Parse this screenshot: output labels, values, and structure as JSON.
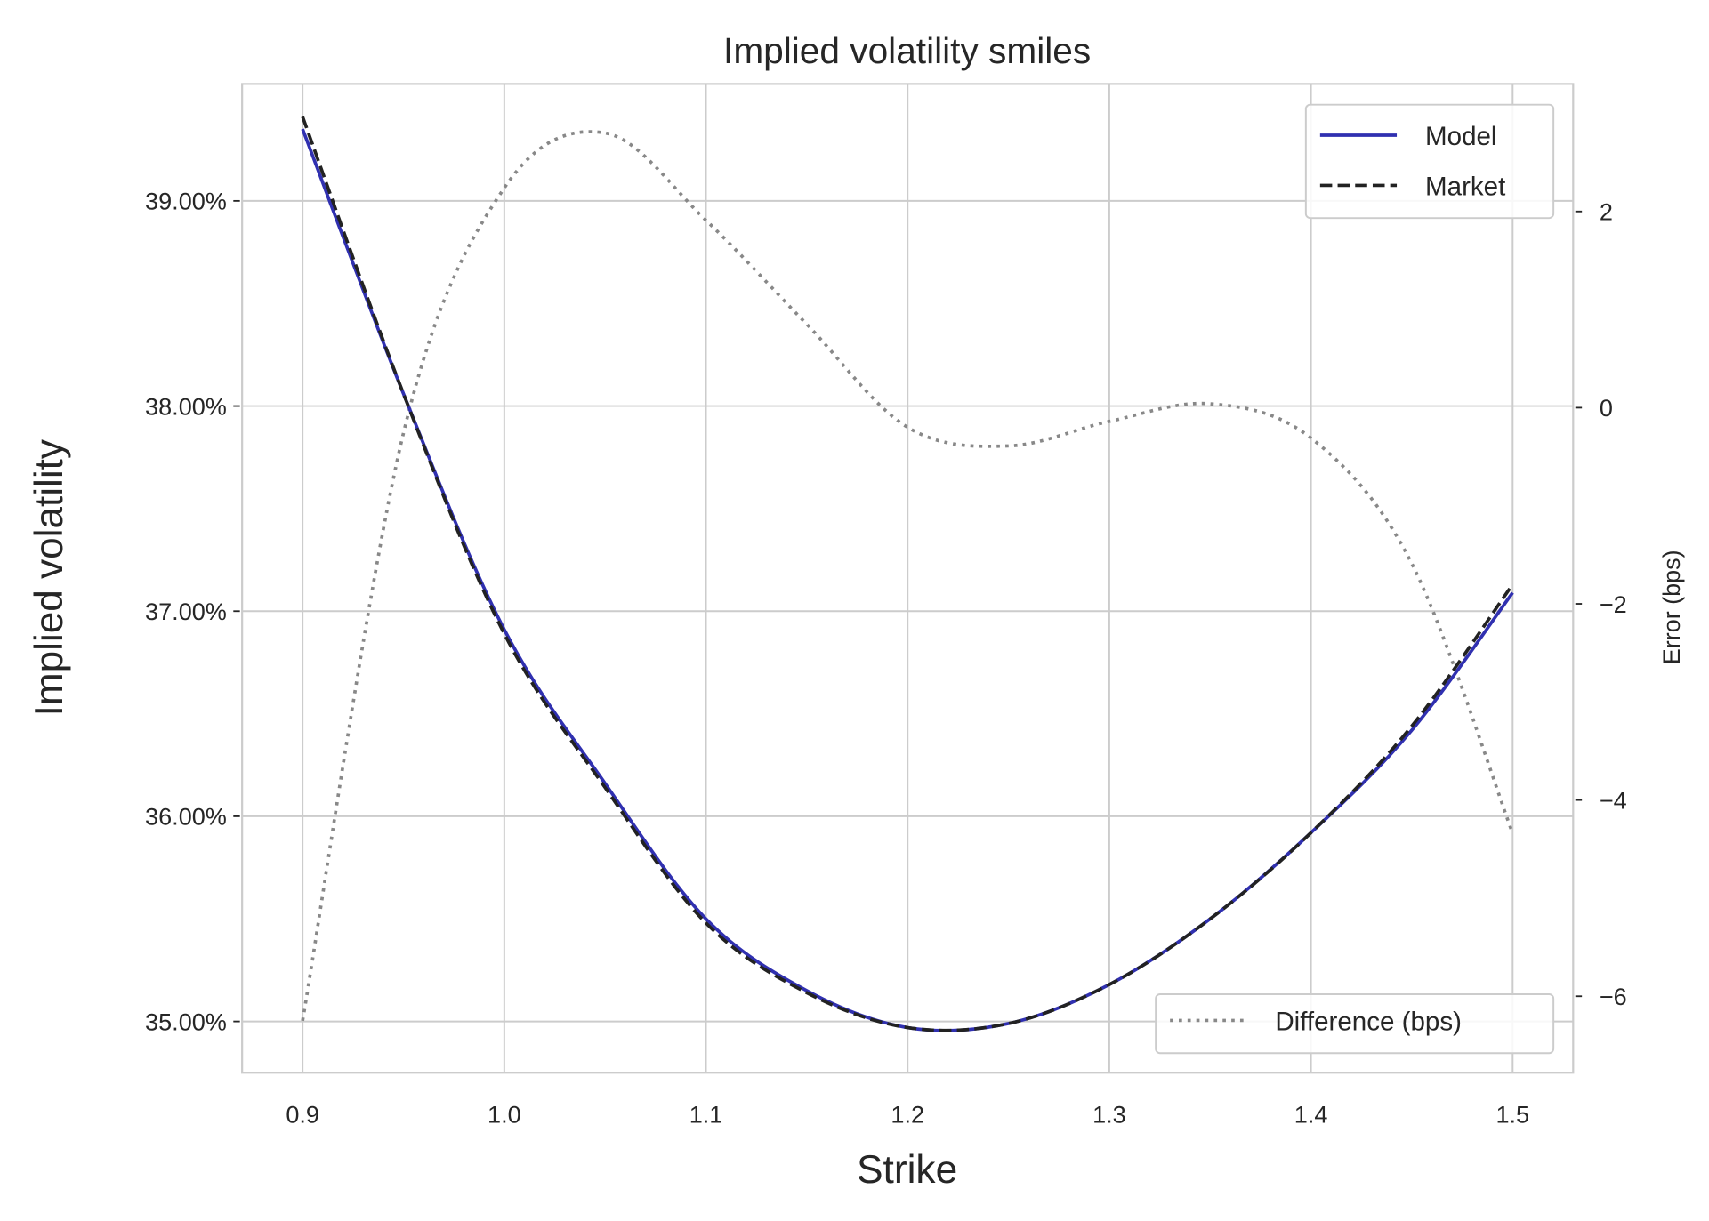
{
  "chart_data": {
    "type": "line",
    "title": "Implied volatility smiles",
    "xlabel": "Strike",
    "ylabel": "Implied volatility",
    "y2label": "Error (bps)",
    "xlim": [
      0.87,
      1.53
    ],
    "ylim": [
      34.75,
      39.57
    ],
    "y2lim": [
      -6.78,
      3.3
    ],
    "grid": true,
    "x_ticks": [
      "0.9",
      "1.0",
      "1.1",
      "1.2",
      "1.3",
      "1.4",
      "1.5"
    ],
    "y_ticks": [
      "35.00%",
      "36.00%",
      "37.00%",
      "38.00%",
      "39.00%"
    ],
    "y2_ticks": [
      "−6",
      "−4",
      "−2",
      "0",
      "2"
    ],
    "x": [
      0.9,
      0.95,
      1.0,
      1.05,
      1.1,
      1.15,
      1.2,
      1.25,
      1.3,
      1.35,
      1.4,
      1.45,
      1.5
    ],
    "series": [
      {
        "name": "Model",
        "axis": "left",
        "color": "#3030b0",
        "style": "solid",
        "values": [
          39.35,
          38.06,
          36.91,
          36.16,
          35.5,
          35.15,
          34.97,
          34.99,
          35.18,
          35.5,
          35.92,
          36.42,
          37.09
        ]
      },
      {
        "name": "Market",
        "axis": "left",
        "color": "#222222",
        "style": "dashed",
        "values": [
          39.41,
          38.06,
          36.89,
          36.14,
          35.48,
          35.14,
          34.97,
          34.99,
          35.18,
          35.5,
          35.92,
          36.44,
          37.13
        ]
      },
      {
        "name": "Difference (bps)",
        "axis": "right",
        "color": "#888888",
        "style": "dotted",
        "values": [
          -6.25,
          -0.26,
          2.24,
          2.8,
          1.91,
          0.85,
          -0.2,
          -0.39,
          -0.14,
          0.04,
          -0.31,
          -1.59,
          -4.34
        ]
      }
    ],
    "legend": [
      {
        "position": "upper-right",
        "entries": [
          "Model",
          "Market"
        ]
      },
      {
        "position": "lower-right",
        "entries": [
          "Difference (bps)"
        ]
      }
    ]
  }
}
